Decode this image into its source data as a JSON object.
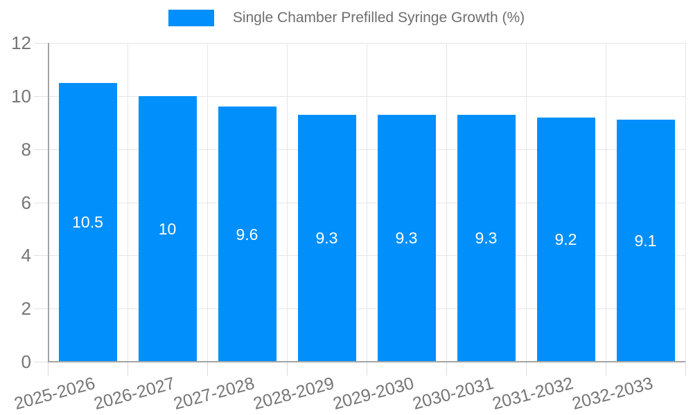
{
  "legend": {
    "items": [
      {
        "label": "Single Chamber Prefilled Syringe Growth (%)",
        "color": "#008FFB"
      }
    ]
  },
  "chart_data": {
    "type": "bar",
    "title": "",
    "xlabel": "",
    "ylabel": "",
    "categories": [
      "2025-2026",
      "2026-2027",
      "2027-2028",
      "2028-2029",
      "2029-2030",
      "2030-2031",
      "2031-2032",
      "2032-2033"
    ],
    "series": [
      {
        "name": "Single Chamber Prefilled Syringe Growth (%)",
        "values": [
          10.5,
          10,
          9.6,
          9.3,
          9.3,
          9.3,
          9.2,
          9.1
        ],
        "labels": [
          "10.5",
          "10",
          "9.6",
          "9.3",
          "9.3",
          "9.3",
          "9.2",
          "9.1"
        ],
        "color": "#008FFB"
      }
    ],
    "ylim": [
      0,
      12
    ],
    "yticks": [
      0,
      2,
      4,
      6,
      8,
      10,
      12
    ],
    "grid": true,
    "legend_position": "top",
    "x_tick_rotation": -15,
    "data_label_color": "#ffffff"
  },
  "colors": {
    "bar": "#008FFB",
    "grid": "#e6e6e6",
    "axis": "#a4a4a4",
    "tick_text": "#757575",
    "legend_text": "#6e6e6e",
    "background": "#ffffff"
  }
}
